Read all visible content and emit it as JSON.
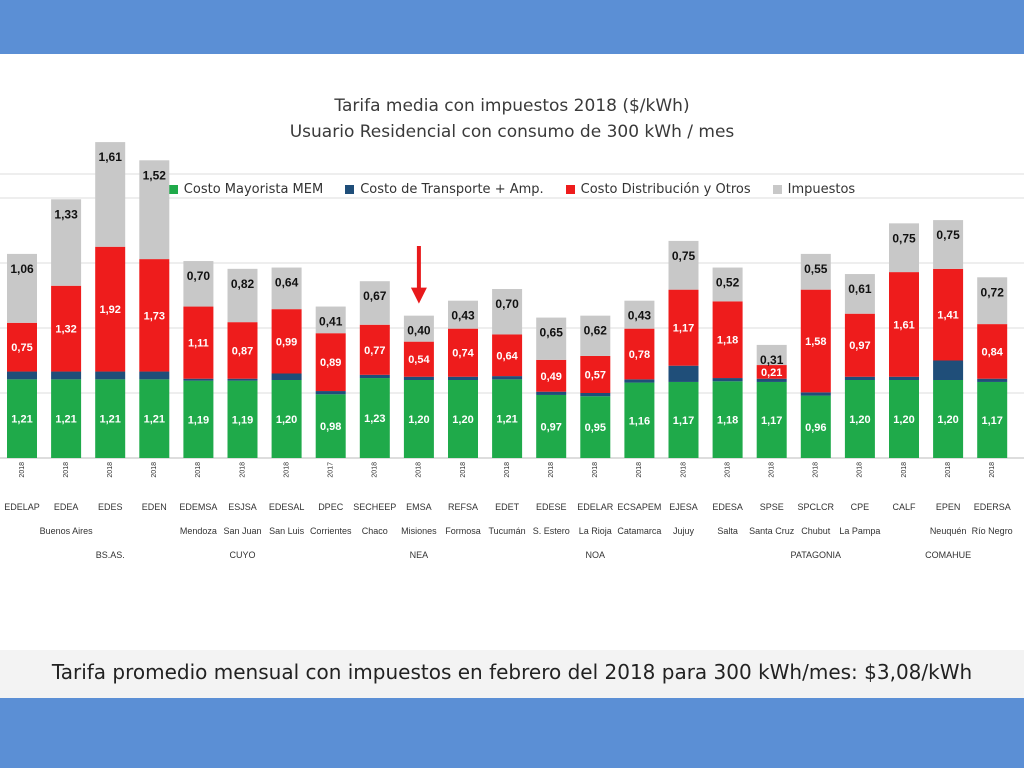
{
  "header": {
    "title_line1": "Tarifa media con impuestos  2018  ($/kWh)",
    "title_line2": "Usuario Residencial con consumo de 300 kWh / mes"
  },
  "legend": [
    {
      "label": "Costo Mayorista MEM",
      "color": "#1faa4a"
    },
    {
      "label": "Costo de Transporte + Amp.",
      "color": "#1f4e79"
    },
    {
      "label": "Costo Distribución y Otros",
      "color": "#ee1c1c"
    },
    {
      "label": "Impuestos",
      "color": "#c8c8c8"
    }
  ],
  "footer": {
    "text": "Tarifa promedio mensual con impuestos en febrero del 2018 para 300 kWh/mes: $3,08/kWh"
  },
  "chart_data": {
    "type": "bar",
    "stacked": true,
    "series": [
      {
        "name": "Costo Mayorista MEM",
        "color": "#1faa4a",
        "labeled": true
      },
      {
        "name": "Costo de Transporte + Amp.",
        "color": "#1f4e79",
        "labeled": false
      },
      {
        "name": "Costo Distribución y Otros",
        "color": "#ee1c1c",
        "labeled": true
      },
      {
        "name": "Impuestos",
        "color": "#c8c8c8",
        "labeled": true
      }
    ],
    "categories": [
      {
        "company": "EDELAP",
        "year": "2018",
        "province": "",
        "region": "",
        "values": [
          1.21,
          0.12,
          0.75,
          1.06
        ]
      },
      {
        "company": "EDEA",
        "year": "2018",
        "province": "Buenos Aires",
        "region": "",
        "values": [
          1.21,
          0.12,
          1.32,
          1.33
        ]
      },
      {
        "company": "EDES",
        "year": "2018",
        "province": "",
        "region": "BS.AS.",
        "values": [
          1.21,
          0.12,
          1.92,
          1.61
        ]
      },
      {
        "company": "EDEN",
        "year": "2018",
        "province": "",
        "region": "",
        "values": [
          1.21,
          0.12,
          1.73,
          1.52
        ]
      },
      {
        "company": "EDEMSA",
        "year": "2018",
        "province": "Mendoza",
        "region": "",
        "values": [
          1.19,
          0.03,
          1.11,
          0.7
        ]
      },
      {
        "company": "ESJSA",
        "year": "2018",
        "province": "San Juan",
        "region": "CUYO",
        "values": [
          1.19,
          0.03,
          0.87,
          0.82
        ]
      },
      {
        "company": "EDESAL",
        "year": "2018",
        "province": "San Luis",
        "region": "",
        "values": [
          1.2,
          0.1,
          0.99,
          0.64
        ]
      },
      {
        "company": "DPEC",
        "year": "2017",
        "province": "Corrientes",
        "region": "",
        "values": [
          0.98,
          0.05,
          0.89,
          0.41
        ]
      },
      {
        "company": "SECHEEP",
        "year": "2018",
        "province": "Chaco",
        "region": "",
        "values": [
          1.23,
          0.05,
          0.77,
          0.67
        ]
      },
      {
        "company": "EMSA",
        "year": "2018",
        "province": "Misiones",
        "region": "NEA",
        "values": [
          1.2,
          0.05,
          0.54,
          0.4
        ]
      },
      {
        "company": "REFSA",
        "year": "2018",
        "province": "Formosa",
        "region": "",
        "values": [
          1.2,
          0.05,
          0.74,
          0.43
        ]
      },
      {
        "company": "EDET",
        "year": "2018",
        "province": "Tucumán",
        "region": "",
        "values": [
          1.21,
          0.05,
          0.64,
          0.7
        ]
      },
      {
        "company": "EDESE",
        "year": "2018",
        "province": "S. Estero",
        "region": "",
        "values": [
          0.97,
          0.05,
          0.49,
          0.65
        ]
      },
      {
        "company": "EDELAR",
        "year": "2018",
        "province": "La Rioja",
        "region": "NOA",
        "values": [
          0.95,
          0.05,
          0.57,
          0.62
        ]
      },
      {
        "company": "ECSAPEM",
        "year": "2018",
        "province": "Catamarca",
        "region": "",
        "values": [
          1.16,
          0.05,
          0.78,
          0.43
        ]
      },
      {
        "company": "EJESA",
        "year": "2018",
        "province": "Jujuy",
        "region": "",
        "values": [
          1.17,
          0.25,
          1.17,
          0.75
        ]
      },
      {
        "company": "EDESA",
        "year": "2018",
        "province": "Salta",
        "region": "",
        "values": [
          1.18,
          0.05,
          1.18,
          0.52
        ]
      },
      {
        "company": "SPSE",
        "year": "2018",
        "province": "Santa Cruz",
        "region": "",
        "values": [
          1.17,
          0.05,
          0.21,
          0.31
        ]
      },
      {
        "company": "SPCLCR",
        "year": "2018",
        "province": "Chubut",
        "region": "PATAGONIA",
        "values": [
          0.96,
          0.05,
          1.58,
          0.55
        ]
      },
      {
        "company": "CPE",
        "year": "2018",
        "province": "La Pampa",
        "region": "",
        "values": [
          1.2,
          0.05,
          0.97,
          0.61
        ]
      },
      {
        "company": "CALF",
        "year": "2018",
        "province": "",
        "region": "",
        "values": [
          1.2,
          0.05,
          1.61,
          0.75
        ]
      },
      {
        "company": "EPEN",
        "year": "2018",
        "province": "Neuquén",
        "region": "COMAHUE",
        "values": [
          1.2,
          0.3,
          1.41,
          0.75
        ]
      },
      {
        "company": "EDERSA",
        "year": "2018",
        "province": "Río Negro",
        "region": "",
        "values": [
          1.17,
          0.05,
          0.84,
          0.72
        ]
      }
    ],
    "labels": {
      "values": [
        [
          "1,21",
          "",
          "0,75",
          "1,06"
        ],
        [
          "1,21",
          "",
          "1,32",
          "1,33"
        ],
        [
          "1,21",
          "",
          "1,92",
          "1,61"
        ],
        [
          "1,21",
          "",
          "1,73",
          "1,52"
        ],
        [
          "1,19",
          "",
          "1,11",
          "0,70"
        ],
        [
          "1,19",
          "",
          "0,87",
          "0,82"
        ],
        [
          "1,20",
          "",
          "0,99",
          "0,64"
        ],
        [
          "0,98",
          "",
          "0,89",
          "0,41"
        ],
        [
          "1,23",
          "",
          "0,77",
          "0,67"
        ],
        [
          "1,20",
          "",
          "0,54",
          "0,40"
        ],
        [
          "1,20",
          "",
          "0,74",
          "0,43"
        ],
        [
          "1,21",
          "",
          "0,64",
          "0,70"
        ],
        [
          "0,97",
          "",
          "0,49",
          "0,65"
        ],
        [
          "0,95",
          "",
          "0,57",
          "0,62"
        ],
        [
          "1,16",
          "",
          "0,78",
          "0,43"
        ],
        [
          "1,17",
          "",
          "1,17",
          "0,75"
        ],
        [
          "1,18",
          "",
          "1,18",
          "0,52"
        ],
        [
          "1,17",
          "",
          "0,21",
          "0,31"
        ],
        [
          "0,96",
          "",
          "1,58",
          "0,55"
        ],
        [
          "1,20",
          "",
          "0,97",
          "0,61"
        ],
        [
          "1,20",
          "",
          "1,61",
          "0,75"
        ],
        [
          "1,20",
          "",
          "1,41",
          "0,75"
        ],
        [
          "1,17",
          "",
          "0,84",
          "0,72"
        ]
      ]
    },
    "highlight": {
      "category": "EMSA",
      "marker": "red-arrow"
    },
    "ylim": [
      0,
      5.0
    ],
    "grid": true,
    "legend_position": "top-center"
  }
}
